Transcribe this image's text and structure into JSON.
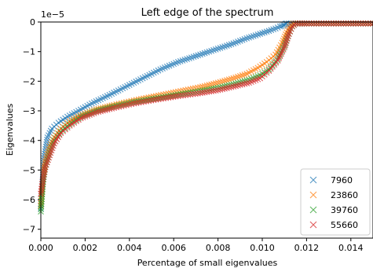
{
  "chart_data": {
    "type": "scatter",
    "title": "Left edge of the spectrum",
    "xlabel": "Percentage of small eigenvalues",
    "ylabel": "Eigenvalues",
    "y_offset_label": "1e−5",
    "xlim": [
      0.0,
      0.015
    ],
    "ylim": [
      -7.3,
      0.0
    ],
    "x_ticks": [
      0.0,
      0.002,
      0.004,
      0.006,
      0.008,
      0.01,
      0.012,
      0.014
    ],
    "x_tick_labels": [
      "0.000",
      "0.002",
      "0.004",
      "0.006",
      "0.008",
      "0.010",
      "0.012",
      "0.014"
    ],
    "y_ticks": [
      0,
      -1,
      -2,
      -3,
      -4,
      -5,
      -6,
      -7
    ],
    "y_tick_labels": [
      "0",
      "−1",
      "−2",
      "−3",
      "−4",
      "−5",
      "−6",
      "−7"
    ],
    "marker": "x",
    "grid": false,
    "legend_position": "lower-right",
    "series": [
      {
        "name": "7960",
        "color": "#1f77b4",
        "x": [
          0.0,
          0.00015,
          0.0003,
          0.0005,
          0.0008,
          0.0012,
          0.0017,
          0.0023,
          0.003,
          0.0038,
          0.0046,
          0.0054,
          0.0062,
          0.007,
          0.0078,
          0.0086,
          0.0093,
          0.0099,
          0.0103,
          0.0106,
          0.0108,
          0.01095,
          0.011,
          0.01105,
          0.0111,
          0.0115,
          0.012,
          0.013,
          0.014,
          0.015
        ],
        "y": [
          -6.3,
          -4.6,
          -3.9,
          -3.6,
          -3.4,
          -3.2,
          -3.0,
          -2.75,
          -2.5,
          -2.2,
          -1.9,
          -1.6,
          -1.35,
          -1.15,
          -0.95,
          -0.75,
          -0.55,
          -0.4,
          -0.3,
          -0.22,
          -0.15,
          -0.12,
          -0.1,
          -0.06,
          -0.05,
          -0.05,
          -0.05,
          -0.05,
          -0.05,
          -0.05
        ]
      },
      {
        "name": "23860",
        "color": "#ff7f0e",
        "x": [
          0.0,
          0.0001,
          0.0002,
          0.0004,
          0.0006,
          0.0009,
          0.0013,
          0.0018,
          0.0025,
          0.0033,
          0.0042,
          0.0052,
          0.0062,
          0.0072,
          0.008,
          0.0087,
          0.0093,
          0.0098,
          0.0102,
          0.0106,
          0.0109,
          0.0111,
          0.01125,
          0.0114,
          0.0115,
          0.012,
          0.013,
          0.014,
          0.015
        ],
        "y": [
          -6.2,
          -5.3,
          -4.7,
          -4.2,
          -3.9,
          -3.6,
          -3.35,
          -3.15,
          -2.95,
          -2.8,
          -2.65,
          -2.5,
          -2.35,
          -2.2,
          -2.05,
          -1.9,
          -1.75,
          -1.55,
          -1.35,
          -1.1,
          -0.7,
          -0.35,
          -0.15,
          -0.05,
          -0.05,
          -0.05,
          -0.05,
          -0.05,
          -0.05
        ]
      },
      {
        "name": "39760",
        "color": "#2ca02c",
        "x": [
          0.0,
          0.0001,
          0.0002,
          0.0004,
          0.0006,
          0.0009,
          0.0013,
          0.0018,
          0.0025,
          0.0033,
          0.0042,
          0.0052,
          0.0062,
          0.0072,
          0.008,
          0.0087,
          0.0094,
          0.0099,
          0.0103,
          0.0107,
          0.011,
          0.0112,
          0.01135,
          0.0115,
          0.0116,
          0.012,
          0.013,
          0.014,
          0.015
        ],
        "y": [
          -6.4,
          -5.4,
          -4.9,
          -4.4,
          -4.0,
          -3.7,
          -3.45,
          -3.2,
          -3.0,
          -2.85,
          -2.7,
          -2.58,
          -2.45,
          -2.33,
          -2.22,
          -2.1,
          -1.95,
          -1.8,
          -1.6,
          -1.25,
          -0.8,
          -0.4,
          -0.15,
          -0.05,
          -0.05,
          -0.05,
          -0.05,
          -0.05,
          -0.05
        ]
      },
      {
        "name": "55660",
        "color": "#d62728",
        "x": [
          0.0,
          0.0001,
          0.0002,
          0.0004,
          0.0006,
          0.0009,
          0.0013,
          0.0018,
          0.0025,
          0.0033,
          0.0042,
          0.0052,
          0.0062,
          0.0072,
          0.008,
          0.0087,
          0.0094,
          0.0099,
          0.0103,
          0.0107,
          0.011,
          0.0112,
          0.01135,
          0.0115,
          0.0116,
          0.012,
          0.013,
          0.014,
          0.015
        ],
        "y": [
          -5.8,
          -5.3,
          -4.9,
          -4.5,
          -4.1,
          -3.75,
          -3.5,
          -3.25,
          -3.05,
          -2.9,
          -2.75,
          -2.62,
          -2.5,
          -2.4,
          -2.3,
          -2.18,
          -2.05,
          -1.9,
          -1.65,
          -1.3,
          -0.85,
          -0.4,
          -0.15,
          -0.05,
          -0.05,
          -0.05,
          -0.05,
          -0.05,
          -0.05
        ]
      }
    ]
  }
}
